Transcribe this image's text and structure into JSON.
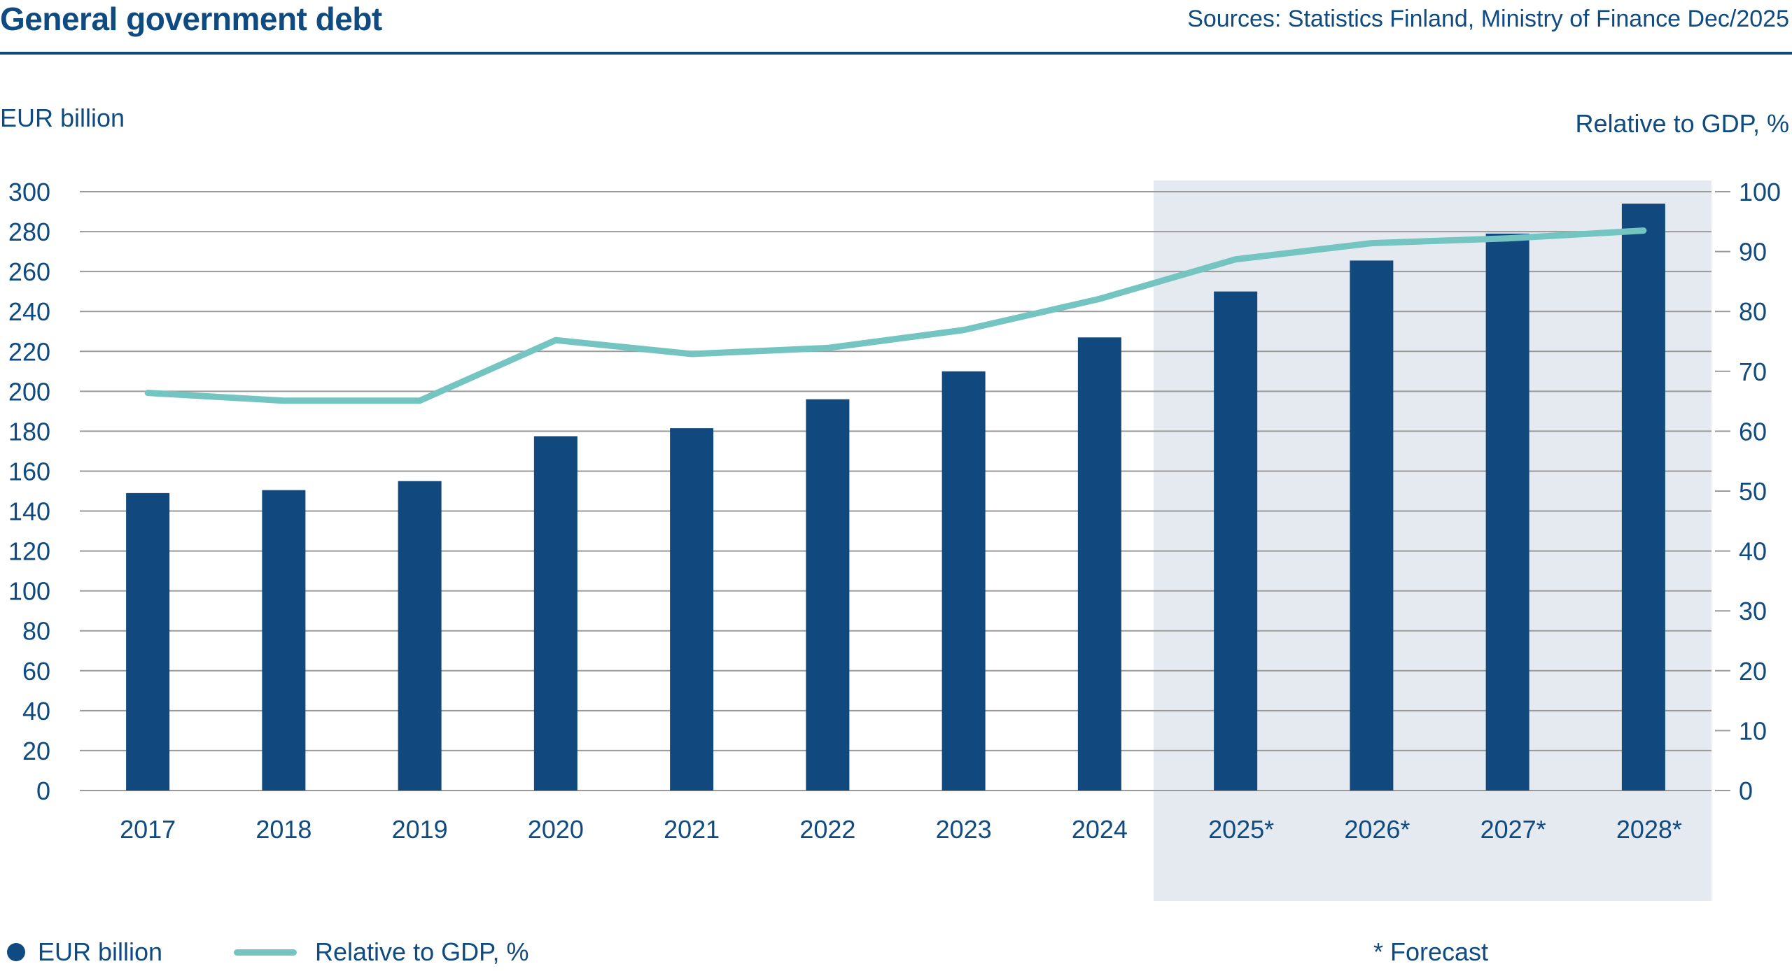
{
  "header": {
    "title": "General government debt",
    "source": "Sources: Statistics Finland, Ministry of Finance Dec/2025"
  },
  "legend": {
    "bars": "EUR billion",
    "line": "Relative to GDP, %",
    "note": "* Forecast"
  },
  "colors": {
    "bar": "#11497e",
    "line": "#74c5c1",
    "forecast_shade": "#e5eaf1",
    "grid": "#9a9a9a",
    "text": "#0f4a80"
  },
  "chart_data": {
    "type": "bar+line",
    "title": "General government debt",
    "ylabel_left": "EUR billion",
    "ylabel_right": "Relative to GDP, %",
    "categories": [
      "2017",
      "2018",
      "2019",
      "2020",
      "2021",
      "2022",
      "2023",
      "2024",
      "2025*",
      "2026*",
      "2027*",
      "2028*"
    ],
    "forecast_from": "2025*",
    "series": [
      {
        "name": "EUR billion",
        "type": "bar",
        "axis": "left",
        "values": [
          149,
          150.5,
          155,
          177.5,
          181.5,
          196,
          210,
          227,
          250,
          265.5,
          279,
          294
        ]
      },
      {
        "name": "Relative to GDP, %",
        "type": "line",
        "axis": "right",
        "values": [
          66.4,
          65.1,
          65.1,
          75.2,
          72.9,
          73.9,
          76.9,
          82.1,
          88.7,
          91.4,
          92.2,
          93.5
        ]
      }
    ],
    "ylim_left": [
      0,
      300
    ],
    "yticks_left": [
      "0",
      "20",
      "40",
      "60",
      "80",
      "100",
      "120",
      "140",
      "160",
      "180",
      "200",
      "220",
      "240",
      "260",
      "280",
      "300"
    ],
    "ylim_right": [
      0,
      100
    ],
    "yticks_right": [
      "0",
      "10",
      "20",
      "30",
      "40",
      "50",
      "60",
      "70",
      "80",
      "90",
      "100"
    ],
    "grid": true,
    "legend_position": "bottom-left"
  }
}
